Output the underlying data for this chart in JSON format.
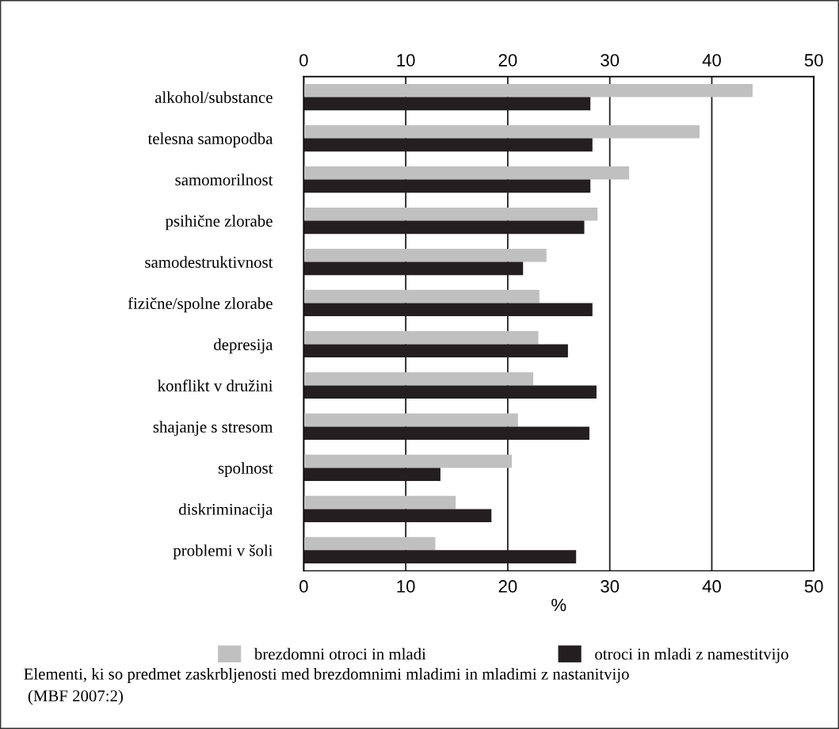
{
  "chart_data": {
    "type": "bar",
    "orientation": "horizontal",
    "categories": [
      "alkohol/substance",
      "telesna samopodba",
      "samomorilnost",
      "psihične zlorabe",
      "samodestruktivnost",
      "fizične/spolne zlorabe",
      "depresija",
      "konflikt v družini",
      "shajanje s stresom",
      "spolnost",
      "diskriminacija",
      "problemi v šoli"
    ],
    "series": [
      {
        "name": "brezdomni otroci in mladi",
        "color": "#c0c0c0",
        "values": [
          44.0,
          38.8,
          31.9,
          28.8,
          23.8,
          23.1,
          23.0,
          22.5,
          21.0,
          20.4,
          14.9,
          12.9
        ]
      },
      {
        "name": "otroci in mladi z namestitvijo",
        "color": "#231f20",
        "values": [
          28.1,
          28.3,
          28.1,
          27.5,
          21.5,
          28.3,
          25.9,
          28.7,
          28.0,
          13.4,
          18.4,
          26.7
        ]
      }
    ],
    "xlabel": "%",
    "xlim": [
      0,
      50
    ],
    "xticks": [
      0,
      10,
      20,
      30,
      40,
      50
    ],
    "x2lim": [
      0,
      50
    ],
    "x2ticks": [
      0,
      10,
      20,
      30,
      40,
      50
    ],
    "grid": "x",
    "legend": "bottom",
    "annotations": [
      "Elementi, ki so predmet zaskrbljenosti med brezdomnimi mladimi in mladimi z nastanitvijo",
      "(MBF 2007:2)"
    ]
  }
}
